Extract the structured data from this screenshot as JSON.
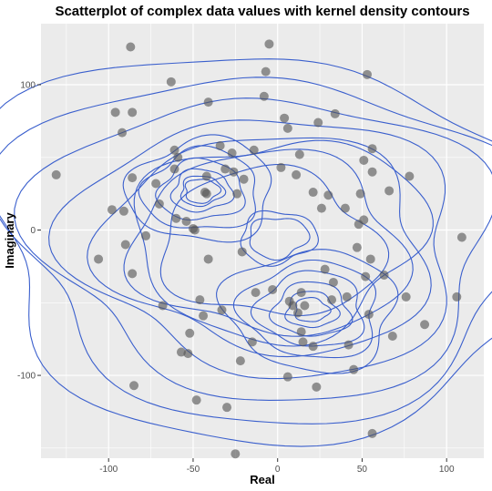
{
  "chart_data": {
    "type": "scatter",
    "title": "Scatterplot of complex data values with kernel density contours",
    "xlabel": "Real",
    "ylabel": "Imaginary",
    "xlim": [
      -140,
      122
    ],
    "ylim": [
      -157,
      142
    ],
    "x_ticks": [
      -100,
      -50,
      0,
      50,
      100
    ],
    "y_ticks": [
      100,
      0,
      -100
    ],
    "x_minor_ticks": [
      -125,
      -75,
      -25,
      25,
      75,
      125
    ],
    "y_minor_ticks": [
      150,
      50,
      -50,
      -150
    ],
    "grid": true,
    "legend": "none",
    "colors": {
      "panel": "#ebebeb",
      "grid": "#ffffff",
      "points": "#555555",
      "contours": "#3a5fcd"
    },
    "series": [
      {
        "values": [
          {
            "x": -131,
            "y": 38
          },
          {
            "x": -106,
            "y": -20
          },
          {
            "x": -98,
            "y": 14
          },
          {
            "x": -96,
            "y": 81
          },
          {
            "x": -92,
            "y": 67
          },
          {
            "x": -91,
            "y": 13
          },
          {
            "x": -90,
            "y": -10
          },
          {
            "x": -87,
            "y": 126
          },
          {
            "x": -86,
            "y": 81
          },
          {
            "x": -86,
            "y": -30
          },
          {
            "x": -86,
            "y": 36
          },
          {
            "x": -85,
            "y": -107
          },
          {
            "x": -78,
            "y": -4
          },
          {
            "x": -72,
            "y": 32
          },
          {
            "x": -70,
            "y": 18
          },
          {
            "x": -68,
            "y": -52
          },
          {
            "x": -63,
            "y": 102
          },
          {
            "x": -61,
            "y": 55
          },
          {
            "x": -61,
            "y": 42
          },
          {
            "x": -60,
            "y": 8
          },
          {
            "x": -59,
            "y": 50
          },
          {
            "x": -57,
            "y": -84
          },
          {
            "x": -54,
            "y": 6
          },
          {
            "x": -53,
            "y": -85
          },
          {
            "x": -52,
            "y": -71
          },
          {
            "x": -50,
            "y": 1
          },
          {
            "x": -49,
            "y": 0
          },
          {
            "x": -48,
            "y": -117
          },
          {
            "x": -46,
            "y": -48
          },
          {
            "x": -44,
            "y": -59
          },
          {
            "x": -43,
            "y": 26
          },
          {
            "x": -42,
            "y": 25
          },
          {
            "x": -42,
            "y": 37
          },
          {
            "x": -41,
            "y": 88
          },
          {
            "x": -41,
            "y": -20
          },
          {
            "x": -34,
            "y": 58
          },
          {
            "x": -33,
            "y": -55
          },
          {
            "x": -31,
            "y": 42
          },
          {
            "x": -30,
            "y": -122
          },
          {
            "x": -27,
            "y": 53
          },
          {
            "x": -26,
            "y": 40
          },
          {
            "x": -25,
            "y": -154
          },
          {
            "x": -24,
            "y": 25
          },
          {
            "x": -22,
            "y": -90
          },
          {
            "x": -21,
            "y": -15
          },
          {
            "x": -20,
            "y": 35
          },
          {
            "x": -15,
            "y": -77
          },
          {
            "x": -14,
            "y": 55
          },
          {
            "x": -13,
            "y": -43
          },
          {
            "x": -8,
            "y": 92
          },
          {
            "x": -7,
            "y": 109
          },
          {
            "x": -5,
            "y": 128
          },
          {
            "x": -3,
            "y": -41
          },
          {
            "x": 2,
            "y": 43
          },
          {
            "x": 4,
            "y": 77
          },
          {
            "x": 6,
            "y": 70
          },
          {
            "x": 6,
            "y": -101
          },
          {
            "x": 7,
            "y": -49
          },
          {
            "x": 9,
            "y": -52
          },
          {
            "x": 11,
            "y": 38
          },
          {
            "x": 12,
            "y": -57
          },
          {
            "x": 13,
            "y": 52
          },
          {
            "x": 14,
            "y": -43
          },
          {
            "x": 14,
            "y": -70
          },
          {
            "x": 15,
            "y": -77
          },
          {
            "x": 16,
            "y": -52
          },
          {
            "x": 21,
            "y": 26
          },
          {
            "x": 21,
            "y": -80
          },
          {
            "x": 23,
            "y": -108
          },
          {
            "x": 24,
            "y": 74
          },
          {
            "x": 26,
            "y": 15
          },
          {
            "x": 28,
            "y": -27
          },
          {
            "x": 30,
            "y": 24
          },
          {
            "x": 32,
            "y": -48
          },
          {
            "x": 33,
            "y": -36
          },
          {
            "x": 34,
            "y": 80
          },
          {
            "x": 40,
            "y": 15
          },
          {
            "x": 41,
            "y": -46
          },
          {
            "x": 42,
            "y": -79
          },
          {
            "x": 45,
            "y": -96
          },
          {
            "x": 47,
            "y": -12
          },
          {
            "x": 48,
            "y": 4
          },
          {
            "x": 49,
            "y": 25
          },
          {
            "x": 51,
            "y": 7
          },
          {
            "x": 51,
            "y": 48
          },
          {
            "x": 52,
            "y": -32
          },
          {
            "x": 53,
            "y": 107
          },
          {
            "x": 54,
            "y": -58
          },
          {
            "x": 55,
            "y": -20
          },
          {
            "x": 56,
            "y": 40
          },
          {
            "x": 56,
            "y": 56
          },
          {
            "x": 56,
            "y": -140
          },
          {
            "x": 63,
            "y": -31
          },
          {
            "x": 66,
            "y": 27
          },
          {
            "x": 68,
            "y": -73
          },
          {
            "x": 76,
            "y": -46
          },
          {
            "x": 78,
            "y": 37
          },
          {
            "x": 87,
            "y": -65
          },
          {
            "x": 106,
            "y": -46
          },
          {
            "x": 109,
            "y": -5
          }
        ]
      }
    ],
    "contours": [
      {
        "center": [
          0,
          -5
        ],
        "radii": [
          68,
          14,
          18
        ]
      },
      {
        "center": [
          -45,
          27
        ],
        "radii": [
          8,
          10,
          14,
          20,
          27,
          34
        ]
      },
      {
        "center": [
          20,
          -55
        ],
        "radii": [
          8,
          12,
          18,
          25,
          32,
          40
        ]
      },
      {
        "center": [
          -5,
          -10
        ],
        "radii": [
          50,
          62,
          74,
          88,
          103,
          118,
          132
        ]
      }
    ]
  }
}
